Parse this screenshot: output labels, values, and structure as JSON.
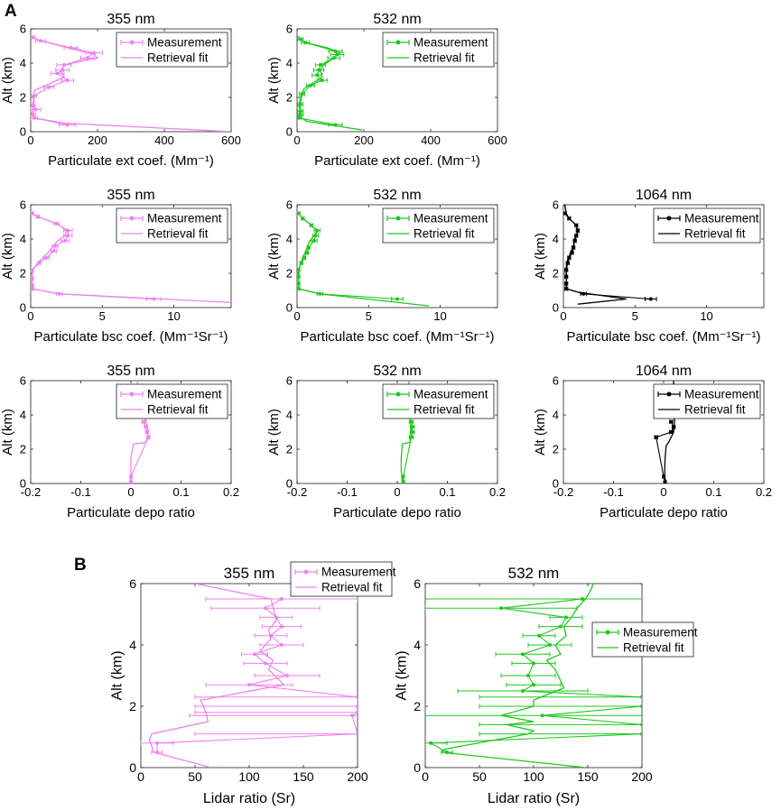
{
  "panel_labels": {
    "a": "A",
    "b": "B"
  },
  "colors": {
    "c355": "#ee82ee",
    "c532": "#1ec81e",
    "c1064": "#000000"
  },
  "chart_data": [
    {
      "id": "ext355",
      "type": "line",
      "title": "355 nm",
      "xlabel": "Particulate ext coef. (Mm⁻¹)",
      "ylabel": "Alt (km)",
      "xlim": [
        0,
        600
      ],
      "ylim": [
        0,
        6
      ],
      "xticks": [
        0,
        200,
        400,
        600
      ],
      "yticks": [
        0,
        2,
        4,
        6
      ],
      "color": "c355",
      "legend": [
        "Measurement",
        "Retrieval fit"
      ],
      "series": [
        {
          "name": "Measurement",
          "x": [
            5,
            30,
            120,
            190,
            170,
            100,
            95,
            80,
            110,
            55,
            10,
            5,
            15,
            5,
            10,
            110
          ],
          "y": [
            5.5,
            5.3,
            4.9,
            4.6,
            4.3,
            3.9,
            3.6,
            3.4,
            3.0,
            2.6,
            2.1,
            1.5,
            1.3,
            1.0,
            0.8,
            0.4
          ],
          "xerr": [
            8,
            15,
            20,
            25,
            20,
            22,
            20,
            20,
            18,
            15,
            8,
            8,
            15,
            10,
            10,
            25
          ]
        },
        {
          "name": "Retrieval fit",
          "x": [
            0,
            5,
            30,
            110,
            190,
            200,
            100,
            90,
            100,
            80,
            10,
            10,
            10,
            5,
            10,
            100,
            600
          ],
          "y": [
            5.6,
            5.5,
            5.3,
            4.9,
            4.5,
            4.3,
            3.9,
            3.5,
            3.2,
            3.0,
            2.4,
            2.0,
            1.5,
            1.2,
            0.8,
            0.5,
            0.0
          ]
        }
      ]
    },
    {
      "id": "ext532",
      "type": "line",
      "title": "532 nm",
      "xlabel": "Particulate ext coef. (Mm⁻¹)",
      "ylabel": "Alt (km)",
      "xlim": [
        0,
        600
      ],
      "ylim": [
        0,
        6
      ],
      "xticks": [
        0,
        200,
        400,
        600
      ],
      "yticks": [
        0,
        2,
        4,
        6
      ],
      "color": "c532",
      "legend": [
        "Measurement",
        "Retrieval fit"
      ],
      "series": [
        {
          "name": "Measurement",
          "x": [
            10,
            25,
            115,
            120,
            110,
            70,
            65,
            60,
            75,
            40,
            15,
            10,
            10,
            10,
            5,
            115
          ],
          "y": [
            5.4,
            5.2,
            4.7,
            4.5,
            4.3,
            3.9,
            3.6,
            3.3,
            3.0,
            2.7,
            2.2,
            1.6,
            1.2,
            1.0,
            0.8,
            0.4
          ],
          "xerr": [
            8,
            12,
            20,
            20,
            18,
            15,
            15,
            15,
            15,
            12,
            8,
            8,
            8,
            8,
            8,
            20
          ]
        },
        {
          "name": "Retrieval fit",
          "x": [
            0,
            10,
            25,
            90,
            130,
            110,
            80,
            70,
            75,
            60,
            20,
            10,
            5,
            10,
            5,
            30,
            195
          ],
          "y": [
            5.6,
            5.4,
            5.2,
            4.9,
            4.6,
            4.3,
            3.9,
            3.6,
            3.2,
            3.0,
            2.5,
            2.0,
            1.5,
            1.2,
            0.9,
            0.6,
            0.1
          ]
        }
      ]
    },
    {
      "id": "bsc355",
      "type": "line",
      "title": "355 nm",
      "xlabel": "Particulate bsc coef. (Mm⁻¹Sr⁻¹)",
      "ylabel": "Alt (km)",
      "xlim": [
        0,
        14
      ],
      "ylim": [
        0,
        6
      ],
      "xticks": [
        0,
        5,
        10
      ],
      "yticks": [
        0,
        2,
        4,
        6
      ],
      "color": "c355",
      "legend": [
        "Measurement",
        "Retrieval fit"
      ],
      "series": [
        {
          "name": "Measurement",
          "x": [
            0.1,
            0.5,
            1.8,
            2.6,
            2.6,
            2.4,
            1.7,
            1.6,
            1.1,
            0.6,
            0.1,
            0.1,
            0.1,
            0.1,
            2.0,
            8.6
          ],
          "y": [
            5.5,
            5.3,
            4.9,
            4.5,
            4.2,
            3.9,
            3.6,
            3.3,
            2.9,
            2.6,
            2.2,
            1.7,
            1.3,
            1.1,
            0.8,
            0.5
          ],
          "xerr": [
            0.1,
            0.1,
            0.2,
            0.3,
            0.3,
            0.3,
            0.2,
            0.2,
            0.2,
            0.1,
            0.1,
            0.1,
            0.1,
            0.1,
            0.2,
            0.5
          ]
        },
        {
          "name": "Retrieval fit",
          "x": [
            0,
            0.1,
            0.5,
            1.8,
            2.5,
            2.4,
            1.9,
            1.6,
            1.2,
            0.6,
            0.1,
            0.1,
            0.1,
            0.1,
            2.0,
            14
          ],
          "y": [
            5.6,
            5.5,
            5.3,
            4.9,
            4.5,
            4.2,
            3.9,
            3.6,
            3.2,
            2.7,
            2.2,
            1.8,
            1.4,
            1.1,
            0.8,
            0.3
          ]
        }
      ]
    },
    {
      "id": "bsc532",
      "type": "line",
      "title": "532 nm",
      "xlabel": "Particulate bsc coef. (Mm⁻¹Sr⁻¹)",
      "ylabel": "Alt (km)",
      "xlim": [
        0,
        14
      ],
      "ylim": [
        0,
        6
      ],
      "xticks": [
        0,
        5,
        10
      ],
      "yticks": [
        0,
        2,
        4,
        6
      ],
      "color": "c532",
      "legend": [
        "Measurement",
        "Retrieval fit"
      ],
      "series": [
        {
          "name": "Measurement",
          "x": [
            0.1,
            0.4,
            1.0,
            1.4,
            1.3,
            1.2,
            0.8,
            0.7,
            0.5,
            0.3,
            0.1,
            0.1,
            0.1,
            0.1,
            1.6,
            7.0
          ],
          "y": [
            5.5,
            5.2,
            4.8,
            4.5,
            4.2,
            3.9,
            3.5,
            3.2,
            2.9,
            2.6,
            2.2,
            1.8,
            1.4,
            1.1,
            0.8,
            0.5
          ],
          "xerr": [
            0.1,
            0.1,
            0.1,
            0.2,
            0.2,
            0.2,
            0.1,
            0.1,
            0.1,
            0.1,
            0.1,
            0.1,
            0.1,
            0.1,
            0.2,
            0.4
          ]
        },
        {
          "name": "Retrieval fit",
          "x": [
            0,
            0.1,
            0.4,
            1.0,
            1.4,
            1.2,
            0.9,
            0.7,
            0.5,
            0.3,
            0.1,
            0.1,
            0.1,
            0.1,
            1.6,
            9.2
          ],
          "y": [
            5.6,
            5.5,
            5.2,
            4.8,
            4.5,
            4.2,
            3.9,
            3.5,
            3.1,
            2.7,
            2.2,
            1.8,
            1.4,
            1.1,
            0.8,
            0.1
          ]
        }
      ]
    },
    {
      "id": "bsc1064",
      "type": "line",
      "title": "1064 nm",
      "xlabel": "Particulate bsc coef. (Mm⁻¹Sr⁻¹)",
      "ylabel": "Alt (km)",
      "xlim": [
        0,
        14
      ],
      "ylim": [
        0,
        6
      ],
      "xticks": [
        0,
        5,
        10
      ],
      "yticks": [
        0,
        2,
        4,
        6
      ],
      "color": "c1064",
      "legend": [
        "Measurement",
        "Retrieval fit"
      ],
      "series": [
        {
          "name": "Measurement",
          "x": [
            0.1,
            0.4,
            0.9,
            1.0,
            0.9,
            0.8,
            0.7,
            0.6,
            0.4,
            0.3,
            0.2,
            0.2,
            0.2,
            0.2,
            1.4,
            6.1
          ],
          "y": [
            5.5,
            5.2,
            4.8,
            4.5,
            4.2,
            3.9,
            3.5,
            3.2,
            2.9,
            2.6,
            2.2,
            1.8,
            1.4,
            1.1,
            0.8,
            0.5
          ],
          "xerr": [
            0.1,
            0.1,
            0.1,
            0.1,
            0.1,
            0.1,
            0.1,
            0.1,
            0.1,
            0.1,
            0.1,
            0.1,
            0.1,
            0.1,
            0.2,
            0.4
          ]
        },
        {
          "name": "Retrieval fit",
          "x": [
            0.1,
            0.2,
            0.4,
            0.9,
            1.0,
            0.8,
            0.7,
            0.5,
            0.3,
            0.2,
            0.2,
            0.2,
            0.2,
            0.2,
            1.0,
            4.4,
            1.0
          ],
          "y": [
            6.0,
            5.5,
            5.2,
            4.8,
            4.4,
            4.0,
            3.6,
            3.2,
            2.8,
            2.4,
            2.0,
            1.6,
            1.3,
            1.1,
            0.9,
            0.5,
            0.2
          ]
        }
      ]
    },
    {
      "id": "depo355",
      "type": "line",
      "title": "355 nm",
      "xlabel": "Particulate depo ratio",
      "ylabel": "Alt (km)",
      "xlim": [
        -0.2,
        0.2
      ],
      "ylim": [
        0,
        6
      ],
      "xticks": [
        -0.2,
        -0.1,
        0,
        0.1,
        0.2
      ],
      "yticks": [
        0,
        2,
        4,
        6
      ],
      "color": "c355",
      "legend": [
        "Measurement",
        "Retrieval fit"
      ],
      "series": [
        {
          "name": "Measurement",
          "x": [
            0.025,
            0.03,
            0.032,
            0.035,
            0.0,
            0.0
          ],
          "y": [
            3.6,
            3.3,
            3.0,
            2.7,
            0.4,
            0.1
          ],
          "xerr": [
            0.003,
            0.003,
            0.003,
            0.003,
            0.002,
            0.002
          ]
        },
        {
          "name": "Retrieval fit",
          "x": [
            0.012,
            0.015,
            0.02,
            0.03,
            0.035,
            0.03,
            0.005,
            0.0,
            0.0,
            0.0
          ],
          "y": [
            6.0,
            5.5,
            4.5,
            3.7,
            3.0,
            2.4,
            2.3,
            1.5,
            0.8,
            0.0
          ]
        }
      ]
    },
    {
      "id": "depo532",
      "type": "line",
      "title": "532 nm",
      "xlabel": "Particulate depo ratio",
      "ylabel": "Alt (km)",
      "xlim": [
        -0.2,
        0.2
      ],
      "ylim": [
        0,
        6
      ],
      "xticks": [
        -0.2,
        -0.1,
        0,
        0.1,
        0.2
      ],
      "yticks": [
        0,
        2,
        4,
        6
      ],
      "color": "c532",
      "legend": [
        "Measurement",
        "Retrieval fit"
      ],
      "series": [
        {
          "name": "Measurement",
          "x": [
            0.028,
            0.03,
            0.03,
            0.028,
            0.012,
            0.012
          ],
          "y": [
            3.6,
            3.3,
            3.0,
            2.7,
            0.4,
            0.1
          ],
          "xerr": [
            0.004,
            0.004,
            0.004,
            0.004,
            0.002,
            0.002
          ]
        },
        {
          "name": "Retrieval fit",
          "x": [
            0.023,
            0.024,
            0.025,
            0.027,
            0.028,
            0.025,
            0.01,
            0.008,
            0.008,
            0.01
          ],
          "y": [
            6.0,
            5.5,
            4.5,
            3.7,
            3.0,
            2.4,
            2.3,
            1.5,
            0.8,
            0.0
          ]
        }
      ]
    },
    {
      "id": "depo1064",
      "type": "line",
      "title": "1064 nm",
      "xlabel": "Particulate depo ratio",
      "ylabel": "Alt (km)",
      "xlim": [
        -0.2,
        0.2
      ],
      "ylim": [
        0,
        6
      ],
      "xticks": [
        -0.2,
        -0.1,
        0,
        0.1,
        0.2
      ],
      "yticks": [
        0,
        2,
        4,
        6
      ],
      "color": "c1064",
      "legend": [
        "Measurement",
        "Retrieval fit"
      ],
      "series": [
        {
          "name": "Measurement",
          "x": [
            0.015,
            0.02,
            0.015,
            -0.015,
            0.0,
            0.003
          ],
          "y": [
            3.6,
            3.3,
            3.0,
            2.7,
            0.4,
            0.1
          ],
          "xerr": [
            0.003,
            0.003,
            0.003,
            0.003,
            0.002,
            0.002
          ]
        },
        {
          "name": "Retrieval fit",
          "x": [
            0.02,
            0.02,
            0.018,
            0.022,
            0.02,
            0.01,
            0.005,
            0.003,
            0.002,
            0.003
          ],
          "y": [
            6.0,
            5.5,
            4.5,
            3.7,
            3.0,
            2.4,
            2.2,
            1.5,
            0.8,
            0.0
          ]
        }
      ]
    },
    {
      "id": "lr355",
      "type": "line",
      "title": "355 nm",
      "xlabel": "Lidar ratio (Sr)",
      "ylabel": "Alt (km)",
      "xlim": [
        0,
        200
      ],
      "ylim": [
        0,
        6
      ],
      "xticks": [
        0,
        50,
        100,
        150,
        200
      ],
      "yticks": [
        0,
        2,
        4,
        6
      ],
      "color": "c355",
      "legend": [
        "Measurement",
        "Retrieval fit"
      ],
      "series": [
        {
          "name": "Measurement",
          "x": [
            130,
            115,
            125,
            130,
            120,
            130,
            105,
            115,
            135,
            100,
            200,
            200,
            200,
            195,
            200,
            15,
            15
          ],
          "y": [
            5.5,
            5.2,
            4.9,
            4.6,
            4.3,
            4.0,
            3.7,
            3.4,
            3.0,
            2.7,
            2.3,
            2.0,
            1.8,
            1.7,
            1.1,
            0.8,
            0.5
          ],
          "xerr": [
            70,
            50,
            15,
            18,
            15,
            20,
            12,
            20,
            30,
            40,
            150,
            150,
            150,
            150,
            150,
            15,
            5
          ]
        },
        {
          "name": "Retrieval fit",
          "x": [
            50,
            120,
            123,
            125,
            118,
            120,
            110,
            122,
            118,
            132,
            55,
            58,
            60,
            62,
            10,
            8,
            12,
            65
          ],
          "y": [
            6.0,
            5.5,
            5.1,
            4.8,
            4.5,
            4.2,
            3.8,
            3.5,
            3.2,
            2.7,
            2.2,
            2.0,
            1.8,
            1.5,
            1.1,
            0.9,
            0.5,
            0.0
          ]
        }
      ]
    },
    {
      "id": "lr532",
      "type": "line",
      "title": "532 nm",
      "xlabel": "Lidar ratio (Sr)",
      "ylabel": "Alt (km)",
      "xlim": [
        0,
        200
      ],
      "ylim": [
        0,
        6
      ],
      "xticks": [
        0,
        50,
        100,
        150,
        200
      ],
      "yticks": [
        0,
        2,
        4,
        6
      ],
      "color": "c532",
      "legend": [
        "Measurement",
        "Retrieval fit"
      ],
      "series": [
        {
          "name": "Measurement",
          "x": [
            145,
            70,
            130,
            125,
            105,
            115,
            90,
            100,
            95,
            100,
            90,
            200,
            200,
            108,
            200,
            200,
            5,
            20
          ],
          "y": [
            5.5,
            5.2,
            4.9,
            4.6,
            4.3,
            4.0,
            3.7,
            3.4,
            3.0,
            2.7,
            2.5,
            2.3,
            2.0,
            1.7,
            1.4,
            1.1,
            0.8,
            0.5
          ],
          "xerr": [
            150,
            70,
            15,
            20,
            15,
            20,
            25,
            20,
            25,
            25,
            60,
            150,
            150,
            150,
            150,
            150,
            15,
            5
          ]
        },
        {
          "name": "Retrieval fit",
          "x": [
            155,
            153,
            148,
            140,
            135,
            128,
            130,
            120,
            125,
            112,
            120,
            128,
            100,
            100,
            70,
            100,
            75,
            100,
            95,
            18,
            15,
            148
          ],
          "y": [
            6.0,
            5.8,
            5.5,
            5.2,
            4.9,
            4.6,
            4.3,
            4.0,
            3.7,
            3.5,
            3.2,
            2.6,
            2.2,
            2.0,
            1.7,
            1.5,
            1.4,
            1.2,
            1.1,
            0.6,
            0.5,
            0.0
          ]
        }
      ]
    }
  ]
}
